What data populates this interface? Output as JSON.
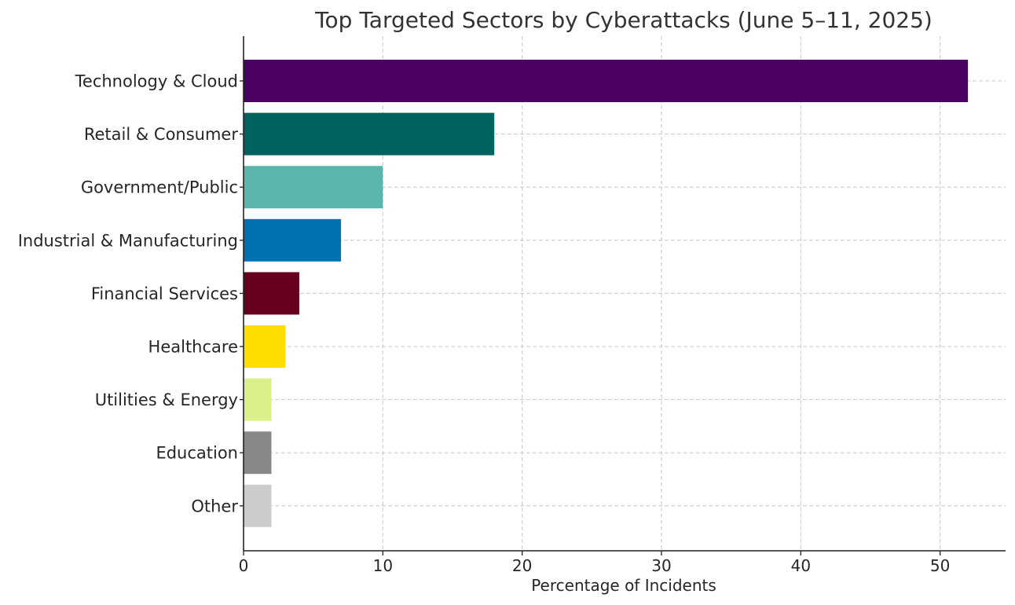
{
  "chart_data": {
    "type": "bar",
    "orientation": "horizontal",
    "title": "Top Targeted Sectors by Cyberattacks (June 5–11, 2025)",
    "xlabel": "Percentage of Incidents",
    "ylabel": "",
    "xlim": [
      0,
      54.7
    ],
    "xticks": [
      0,
      10,
      20,
      30,
      40,
      50
    ],
    "grid": true,
    "categories": [
      "Technology & Cloud",
      "Retail & Consumer",
      "Government/Public",
      "Industrial & Manufacturing",
      "Financial Services",
      "Healthcare",
      "Utilities & Energy",
      "Education",
      "Other"
    ],
    "values": [
      52,
      18,
      10,
      7,
      4,
      3,
      2,
      2,
      2
    ],
    "colors": [
      "#4b0064",
      "#006360",
      "#5cb5ac",
      "#0070b0",
      "#65001e",
      "#ffdd00",
      "#d8ef8a",
      "#888888",
      "#cccccc"
    ]
  }
}
